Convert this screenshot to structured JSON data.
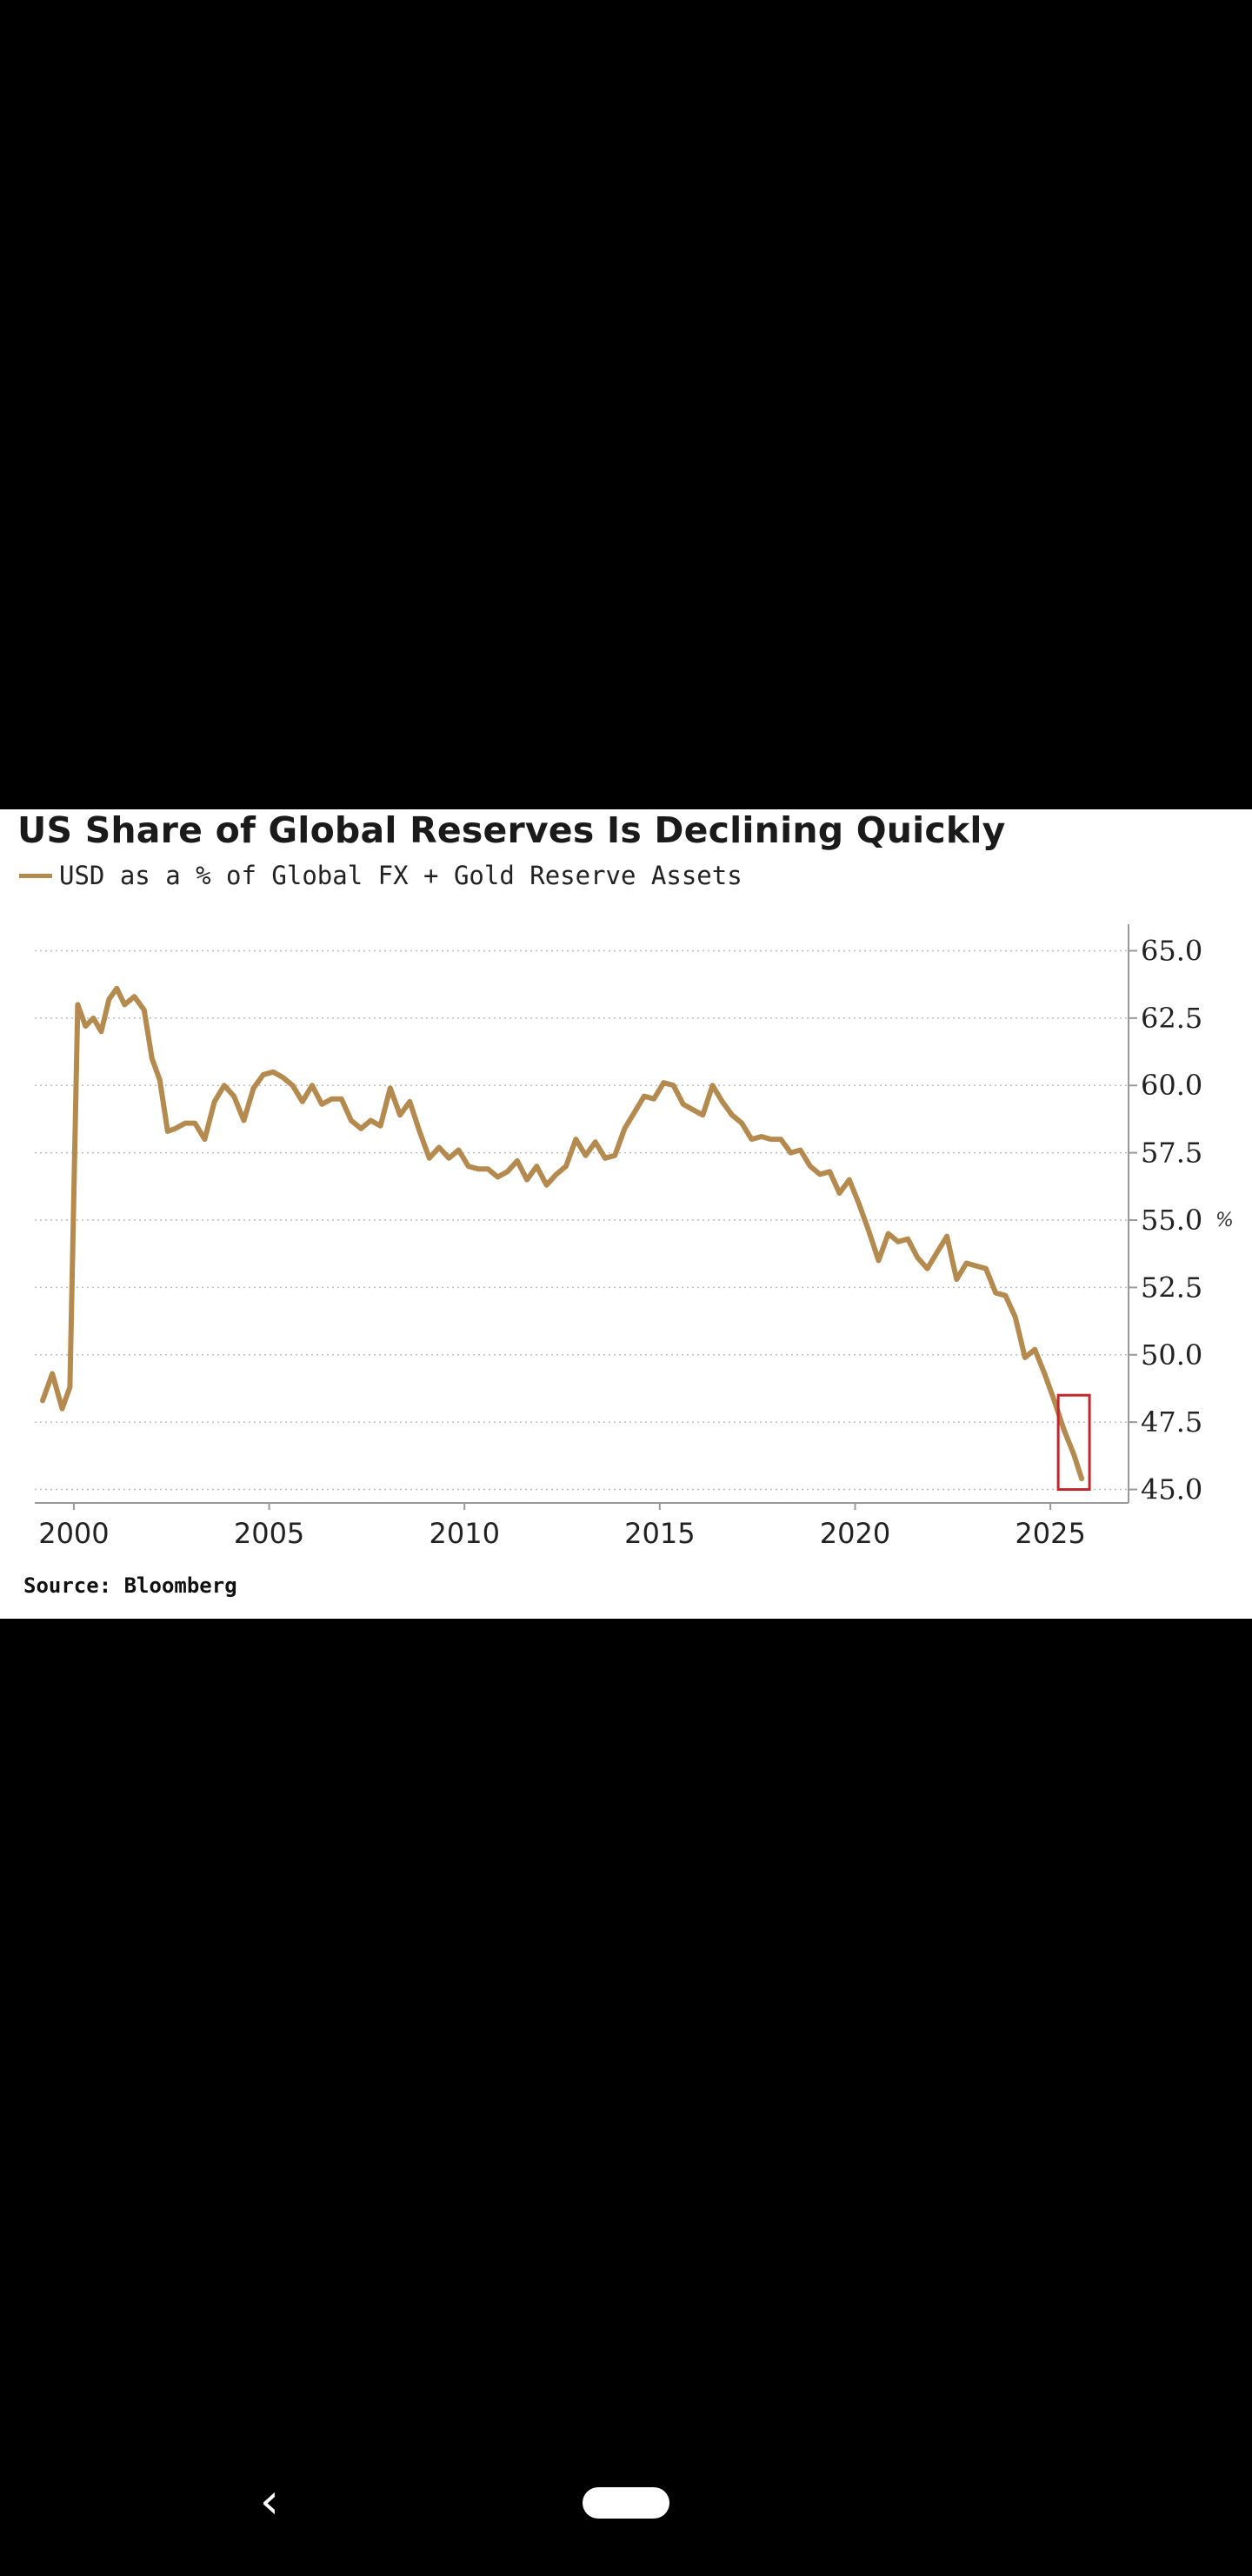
{
  "chart_data": {
    "type": "line",
    "title": "US Share of Global Reserves Is Declining Quickly",
    "legend": [
      "USD as a % of Global FX + Gold Reserve Assets"
    ],
    "source": "Source: Bloomberg",
    "unit_label": "%",
    "color": "#b58a4e",
    "highlight_color": "#c0282d",
    "xlim": [
      1999,
      2027
    ],
    "ylim": [
      44.5,
      65.5
    ],
    "x_ticks": [
      "2000",
      "2005",
      "2010",
      "2015",
      "2020",
      "2025"
    ],
    "x_tick_values": [
      2000,
      2005,
      2010,
      2015,
      2020,
      2025
    ],
    "y_ticks": [
      "65.0",
      "62.5",
      "60.0",
      "57.5",
      "55.0",
      "52.5",
      "50.0",
      "47.5",
      "45.0"
    ],
    "y_tick_values": [
      65,
      62.5,
      60,
      57.5,
      55,
      52.5,
      50,
      47.5,
      45
    ],
    "highlight": {
      "x_range": [
        2025.2,
        2026.0
      ],
      "y_range": [
        45.0,
        48.5
      ]
    },
    "series": [
      {
        "name": "USD as a % of Global FX + Gold Reserve Assets",
        "x": [
          1999.2,
          1999.45,
          1999.7,
          1999.9,
          2000.1,
          2000.3,
          2000.5,
          2000.7,
          2000.9,
          2001.1,
          2001.3,
          2001.55,
          2001.8,
          2002.0,
          2002.2,
          2002.4,
          2002.6,
          2002.85,
          2003.1,
          2003.35,
          2003.6,
          2003.85,
          2004.1,
          2004.35,
          2004.6,
          2004.85,
          2005.1,
          2005.35,
          2005.6,
          2005.85,
          2006.1,
          2006.35,
          2006.6,
          2006.85,
          2007.1,
          2007.35,
          2007.6,
          2007.85,
          2008.1,
          2008.35,
          2008.6,
          2008.85,
          2009.1,
          2009.35,
          2009.6,
          2009.85,
          2010.1,
          2010.35,
          2010.6,
          2010.85,
          2011.1,
          2011.35,
          2011.6,
          2011.85,
          2012.1,
          2012.35,
          2012.6,
          2012.85,
          2013.1,
          2013.35,
          2013.6,
          2013.85,
          2014.1,
          2014.35,
          2014.6,
          2014.85,
          2015.1,
          2015.35,
          2015.6,
          2015.85,
          2016.1,
          2016.35,
          2016.6,
          2016.85,
          2017.1,
          2017.35,
          2017.6,
          2017.85,
          2018.1,
          2018.35,
          2018.6,
          2018.85,
          2019.1,
          2019.35,
          2019.6,
          2019.85,
          2020.1,
          2020.35,
          2020.6,
          2020.85,
          2021.1,
          2021.35,
          2021.6,
          2021.85,
          2022.1,
          2022.35,
          2022.6,
          2022.85,
          2023.1,
          2023.35,
          2023.6,
          2023.85,
          2024.1,
          2024.35,
          2024.6,
          2024.85,
          2025.1,
          2025.35,
          2025.6,
          2025.8
        ],
        "y": [
          48.3,
          49.3,
          48.0,
          48.8,
          63.0,
          62.2,
          62.5,
          62.0,
          63.2,
          63.6,
          63.0,
          63.3,
          62.8,
          61.0,
          60.2,
          58.3,
          58.4,
          58.6,
          58.6,
          58.0,
          59.4,
          60.0,
          59.6,
          58.7,
          59.9,
          60.4,
          60.5,
          60.3,
          60.0,
          59.4,
          60.0,
          59.3,
          59.5,
          59.5,
          58.7,
          58.4,
          58.7,
          58.5,
          59.9,
          58.9,
          59.4,
          58.3,
          57.3,
          57.7,
          57.3,
          57.6,
          57.0,
          56.9,
          56.9,
          56.6,
          56.8,
          57.2,
          56.5,
          57.0,
          56.3,
          56.7,
          57.0,
          58.0,
          57.4,
          57.9,
          57.3,
          57.4,
          58.4,
          59.0,
          59.6,
          59.5,
          60.1,
          60.0,
          59.3,
          59.1,
          58.9,
          60.0,
          59.4,
          58.9,
          58.6,
          58.0,
          58.1,
          58.0,
          58.0,
          57.5,
          57.6,
          57.0,
          56.7,
          56.8,
          56.0,
          56.5,
          55.6,
          54.6,
          53.5,
          54.5,
          54.2,
          54.3,
          53.6,
          53.2,
          53.8,
          54.4,
          52.8,
          53.4,
          53.3,
          53.2,
          52.3,
          52.2,
          51.4,
          49.9,
          50.2,
          49.3,
          48.3,
          47.2,
          46.3,
          45.4
        ]
      }
    ]
  },
  "nav": {
    "back_icon": "chevron-left-icon",
    "home_icon": "home-pill-icon",
    "back_glyph": "‹"
  }
}
